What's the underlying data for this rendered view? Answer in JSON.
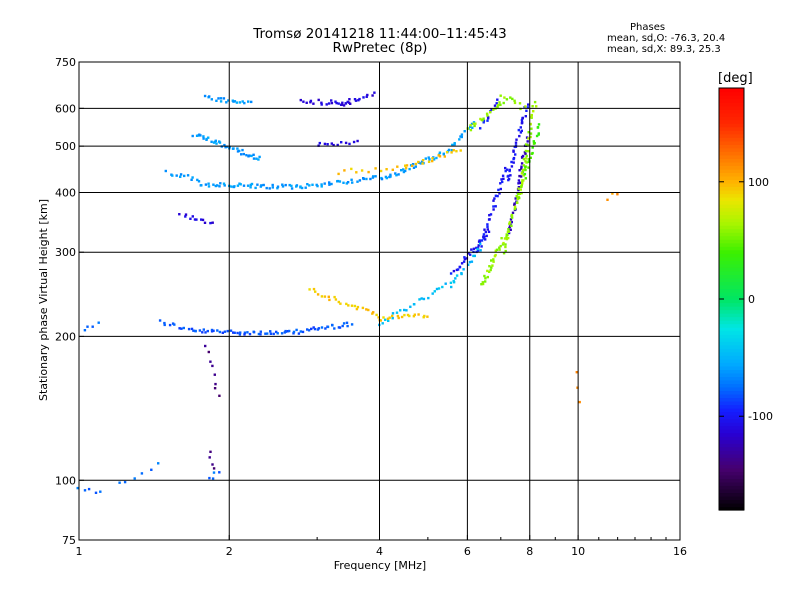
{
  "title": "Tromsø 20141218 11:44:00–11:45:43",
  "subtitle": "RwPretec (8p)",
  "phases_block": {
    "heading": "Phases",
    "line0": "mean, sd,O: -76.3, 20.4",
    "line1": "mean, sd,X:  89.3, 25.3"
  },
  "colorbar": {
    "label": "[deg]",
    "ticks": [
      {
        "value": 100,
        "label": "100"
      },
      {
        "value": 0,
        "label": "0"
      },
      {
        "value": -100,
        "label": "-100"
      }
    ],
    "range": [
      -180,
      180
    ]
  },
  "chart_data": {
    "type": "scatter",
    "title": "Tromsø 20141218 11:44:00–11:45:43",
    "subtitle": "RwPretec (8p)",
    "xlabel": "Frequency [MHz]",
    "ylabel": "Stationary phase Virtual Height [km]",
    "x_scale": "log",
    "y_scale": "log",
    "xlim": [
      1,
      16
    ],
    "ylim": [
      75,
      750
    ],
    "x_ticks": [
      1,
      2,
      4,
      6,
      8,
      10,
      16
    ],
    "y_ticks": [
      75,
      100,
      200,
      300,
      400,
      500,
      600,
      750
    ],
    "grid_x": [
      2,
      4,
      6,
      8,
      10
    ],
    "grid_y": [
      100,
      200,
      300,
      400,
      500,
      600
    ],
    "color_encoding": "phase [deg]",
    "series": [
      {
        "phase": -82,
        "traces": [
          {
            "f0": 1.45,
            "f1": 1.7,
            "h0": 215,
            "h1": 205,
            "n": 12
          },
          {
            "f0": 1.7,
            "f1": 2.6,
            "h0": 205,
            "h1": 203,
            "n": 40
          },
          {
            "f0": 2.6,
            "f1": 3.5,
            "h0": 203,
            "h1": 212,
            "n": 30
          }
        ]
      },
      {
        "phase": -60,
        "traces": [
          {
            "f0": 1.5,
            "f1": 1.75,
            "h0": 440,
            "h1": 425,
            "n": 12
          },
          {
            "f0": 1.75,
            "f1": 2.8,
            "h0": 415,
            "h1": 410,
            "n": 45
          },
          {
            "f0": 2.8,
            "f1": 4.2,
            "h0": 412,
            "h1": 432,
            "n": 35
          },
          {
            "f0": 4.2,
            "f1": 5.5,
            "h0": 432,
            "h1": 490,
            "n": 30
          },
          {
            "f0": 5.5,
            "f1": 6.2,
            "h0": 490,
            "h1": 560,
            "n": 15
          },
          {
            "f0": 1.7,
            "f1": 2.3,
            "h0": 530,
            "h1": 470,
            "n": 40
          },
          {
            "f0": 1.8,
            "f1": 2.2,
            "h0": 630,
            "h1": 615,
            "n": 20
          }
        ]
      },
      {
        "phase": -110,
        "traces": [
          {
            "f0": 1.6,
            "f1": 1.85,
            "h0": 360,
            "h1": 345,
            "n": 12
          },
          {
            "f0": 2.8,
            "f1": 3.5,
            "h0": 620,
            "h1": 615,
            "n": 20
          },
          {
            "f0": 3.3,
            "f1": 3.9,
            "h0": 610,
            "h1": 640,
            "n": 15
          },
          {
            "f0": 3.0,
            "f1": 3.6,
            "h0": 505,
            "h1": 510,
            "n": 12
          }
        ]
      },
      {
        "phase": -100,
        "traces": [
          {
            "f0": 5.6,
            "f1": 6.6,
            "h0": 270,
            "h1": 330,
            "n": 25
          },
          {
            "f0": 6.3,
            "f1": 7.2,
            "h0": 300,
            "h1": 450,
            "n": 35
          },
          {
            "f0": 7.2,
            "f1": 7.9,
            "h0": 420,
            "h1": 610,
            "n": 35
          },
          {
            "f0": 6.4,
            "f1": 6.9,
            "h0": 550,
            "h1": 620,
            "n": 12
          }
        ]
      },
      {
        "phase": -120,
        "traces": [
          {
            "f0": 7.3,
            "f1": 7.9,
            "h0": 330,
            "h1": 520,
            "n": 40
          }
        ]
      },
      {
        "phase": -45,
        "traces": [
          {
            "f0": 4.0,
            "f1": 5.6,
            "h0": 212,
            "h1": 260,
            "n": 25
          },
          {
            "f0": 5.6,
            "f1": 6.4,
            "h0": 255,
            "h1": 310,
            "n": 15
          }
        ]
      },
      {
        "phase": -140,
        "traces": [
          {
            "f0": 1.8,
            "f1": 1.9,
            "h0": 190,
            "h1": 150,
            "n": 8
          },
          {
            "f0": 1.82,
            "f1": 1.86,
            "h0": 115,
            "h1": 105,
            "n": 4
          }
        ]
      },
      {
        "phase": -75,
        "traces": [
          {
            "f0": 1.0,
            "f1": 1.1,
            "h0": 97,
            "h1": 94,
            "n": 5
          },
          {
            "f0": 1.02,
            "f1": 1.1,
            "h0": 208,
            "h1": 212,
            "n": 4
          },
          {
            "f0": 1.2,
            "f1": 1.45,
            "h0": 98,
            "h1": 108,
            "n": 6
          },
          {
            "f0": 1.83,
            "f1": 1.9,
            "h0": 100,
            "h1": 104,
            "n": 4
          }
        ]
      },
      {
        "phase": 95,
        "traces": [
          {
            "f0": 2.9,
            "f1": 4.0,
            "h0": 250,
            "h1": 220,
            "n": 25
          },
          {
            "f0": 4.0,
            "f1": 5.0,
            "h0": 218,
            "h1": 222,
            "n": 18
          },
          {
            "f0": 3.3,
            "f1": 4.5,
            "h0": 442,
            "h1": 450,
            "n": 12
          },
          {
            "f0": 4.5,
            "f1": 5.8,
            "h0": 452,
            "h1": 490,
            "n": 18
          }
        ]
      },
      {
        "phase": 60,
        "traces": [
          {
            "f0": 6.4,
            "f1": 7.2,
            "h0": 255,
            "h1": 330,
            "n": 30
          },
          {
            "f0": 7.1,
            "f1": 7.9,
            "h0": 300,
            "h1": 470,
            "n": 35
          },
          {
            "f0": 7.6,
            "f1": 8.2,
            "h0": 380,
            "h1": 620,
            "n": 35
          },
          {
            "f0": 6.0,
            "f1": 7.1,
            "h0": 540,
            "h1": 620,
            "n": 20
          },
          {
            "f0": 7.0,
            "f1": 7.8,
            "h0": 640,
            "h1": 600,
            "n": 10
          }
        ]
      },
      {
        "phase": 40,
        "traces": [
          {
            "f0": 7.8,
            "f1": 8.4,
            "h0": 430,
            "h1": 560,
            "n": 20
          }
        ]
      },
      {
        "phase": 110,
        "traces": [
          {
            "f0": 10.0,
            "f1": 10.1,
            "h0": 170,
            "h1": 145,
            "n": 3
          },
          {
            "f0": 11.5,
            "f1": 12.0,
            "h0": 390,
            "h1": 400,
            "n": 3
          }
        ]
      }
    ]
  }
}
